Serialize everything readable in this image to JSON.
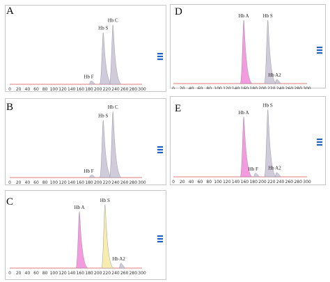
{
  "chart_data": [
    {
      "type": "area",
      "panel": "A",
      "xlim": [
        0,
        300
      ],
      "xticks": [
        "0",
        "20",
        "40",
        "60",
        "80",
        "100",
        "120",
        "140",
        "160",
        "180",
        "200",
        "220",
        "240",
        "260",
        "280",
        "300"
      ],
      "peaks": [
        {
          "name": "Hb F",
          "x": 184,
          "height": 0.05,
          "color": "#c7c2d3"
        },
        {
          "name": "Hb S",
          "x": 212,
          "height": 0.8,
          "color": "#c7c2d3"
        },
        {
          "name": "Hb C",
          "x": 234,
          "height": 0.92,
          "color": "#c7c2d3"
        }
      ],
      "bands_color": "#1f63c8"
    },
    {
      "type": "area",
      "panel": "D",
      "xlim": [
        0,
        300
      ],
      "xticks": [
        "0",
        "20",
        "40",
        "60",
        "80",
        "100",
        "120",
        "140",
        "160",
        "180",
        "200",
        "220",
        "240",
        "260",
        "280",
        "300"
      ],
      "peaks": [
        {
          "name": "Hb A",
          "x": 158,
          "height": 0.92,
          "color": "#f08ad8"
        },
        {
          "name": "Hb S",
          "x": 212,
          "height": 0.92,
          "color": "#c7c2d3"
        },
        {
          "name": "Hb A2",
          "x": 232,
          "height": 0.06,
          "color": "#c7c2d3"
        }
      ],
      "bands_color": "#1f63c8"
    },
    {
      "type": "area",
      "panel": "B",
      "xlim": [
        0,
        300
      ],
      "xticks": [
        "0",
        "20",
        "40",
        "60",
        "80",
        "100",
        "120",
        "140",
        "160",
        "180",
        "200",
        "220",
        "240",
        "260",
        "280",
        "300"
      ],
      "peaks": [
        {
          "name": "Hb F",
          "x": 184,
          "height": 0.03,
          "color": "#c7c2d3"
        },
        {
          "name": "Hb S",
          "x": 212,
          "height": 0.8,
          "color": "#c7c2d3"
        },
        {
          "name": "Hb C",
          "x": 234,
          "height": 0.92,
          "color": "#c7c2d3"
        }
      ],
      "bands_color": "#1f63c8"
    },
    {
      "type": "area",
      "panel": "E",
      "xlim": [
        0,
        300
      ],
      "xticks": [
        "0",
        "20",
        "40",
        "60",
        "80",
        "100",
        "120",
        "140",
        "160",
        "180",
        "200",
        "220",
        "240",
        "260",
        "280",
        "300"
      ],
      "peaks": [
        {
          "name": "Hb A",
          "x": 158,
          "height": 0.82,
          "color": "#f08ad8"
        },
        {
          "name": "Hb F",
          "x": 184,
          "height": 0.05,
          "color": "#c7c2d3"
        },
        {
          "name": "Hb S",
          "x": 212,
          "height": 0.92,
          "color": "#c7c2d3"
        },
        {
          "name": "Hb A2",
          "x": 232,
          "height": 0.06,
          "color": "#c7c2d3"
        }
      ],
      "bands_color": "#1f63c8"
    },
    {
      "type": "area",
      "panel": "C",
      "xlim": [
        0,
        300
      ],
      "xticks": [
        "0",
        "20",
        "40",
        "60",
        "80",
        "100",
        "120",
        "140",
        "160",
        "180",
        "200",
        "220",
        "240",
        "260",
        "280",
        "300"
      ],
      "peaks": [
        {
          "name": "Hb A",
          "x": 158,
          "height": 0.82,
          "color": "#f08ad8"
        },
        {
          "name": "Hb S",
          "x": 216,
          "height": 0.92,
          "color": "#f6e9a0"
        },
        {
          "name": "Hb A2",
          "x": 252,
          "height": 0.07,
          "color": "#c7c2d3"
        }
      ],
      "bands_color": "#1f63c8"
    }
  ]
}
